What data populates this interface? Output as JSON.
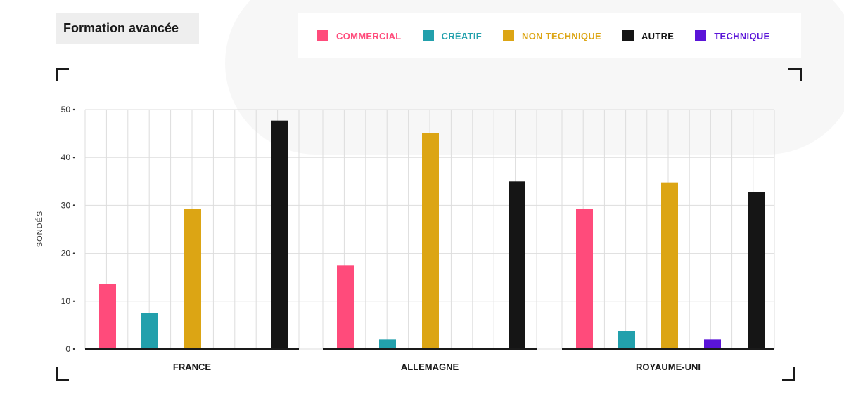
{
  "title": "Formation avancée",
  "legend": [
    {
      "label": "COMMERCIAL",
      "color": "#ff4b7b"
    },
    {
      "label": "CRÉATIF",
      "color": "#22a0ac"
    },
    {
      "label": "NON TECHNIQUE",
      "color": "#dca514"
    },
    {
      "label": "AUTRE",
      "color": "#151515"
    },
    {
      "label": "TECHNIQUE",
      "color": "#5a14d8"
    }
  ],
  "chart_data": {
    "type": "bar",
    "ylabel": "SONDÉS",
    "ylim": [
      0,
      50
    ],
    "yticks": [
      0,
      10,
      20,
      30,
      40,
      50
    ],
    "grid": true,
    "legend_position": "top-right",
    "categories": [
      "FRANCE",
      "ALLEMAGNE",
      "ROYAUME-UNI"
    ],
    "series": [
      {
        "name": "COMMERCIAL",
        "color": "#ff4b7b",
        "values": [
          13.5,
          17.4,
          29.3
        ]
      },
      {
        "name": "CRÉATIF",
        "color": "#22a0ac",
        "values": [
          7.6,
          2.0,
          3.7
        ]
      },
      {
        "name": "NON TECHNIQUE",
        "color": "#dca514",
        "values": [
          29.3,
          45.1,
          34.8
        ]
      },
      {
        "name": "TECHNIQUE",
        "color": "#5a14d8",
        "values": [
          0,
          0,
          2.0
        ]
      },
      {
        "name": "AUTRE",
        "color": "#151515",
        "values": [
          47.7,
          35.0,
          32.7
        ]
      }
    ]
  }
}
